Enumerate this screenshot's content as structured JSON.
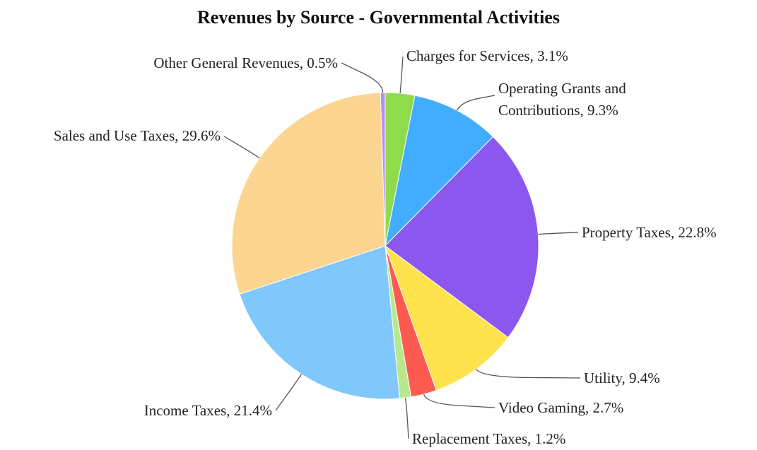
{
  "chart_data": {
    "type": "pie",
    "title": "Revenues by Source - Governmental Activities",
    "values": [
      3.1,
      9.3,
      22.8,
      9.4,
      2.7,
      1.2,
      21.4,
      29.6,
      0.5
    ],
    "value_labels": [
      "Charges for Services, 3.1%",
      "Operating Grants and Contributions, 9.3%",
      "Property Taxes, 22.8%",
      "Utility, 9.4%",
      "Video Gaming, 2.7%",
      "Replacement Taxes, 1.2%",
      "Income Taxes, 21.4%",
      "Sales and Use Taxes, 29.6%",
      "Other General Revenues, 0.5%"
    ],
    "colors": [
      "#8edb4c",
      "#42adff",
      "#8b57ef",
      "#ffe34d",
      "#ff5a50",
      "#b7e98c",
      "#80c8fc",
      "#fcd590",
      "#b98ef0"
    ]
  }
}
